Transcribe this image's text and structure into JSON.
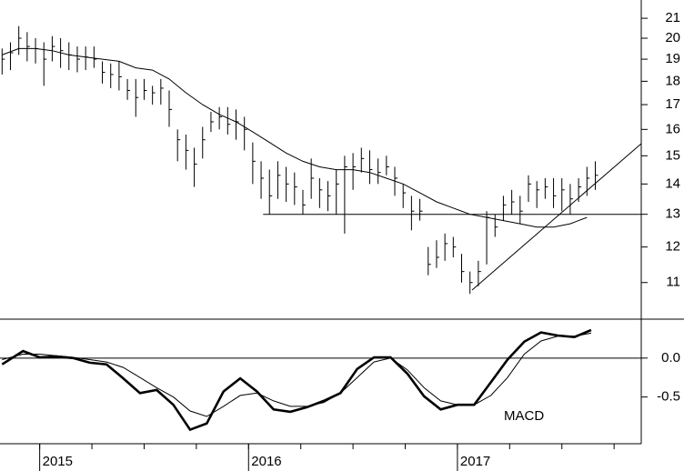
{
  "chart_data": [
    {
      "type": "ohlc",
      "log_y": true,
      "color": "#000000",
      "xlim": [
        2014.81,
        2017.88
      ],
      "ylim": [
        10.08,
        21.96
      ],
      "yticks": [
        11,
        12,
        13,
        14,
        15,
        16,
        17,
        18,
        19,
        20,
        21
      ],
      "x": [
        2014.82,
        2014.86,
        2014.9,
        2014.94,
        2014.98,
        2015.02,
        2015.06,
        2015.1,
        2015.14,
        2015.18,
        2015.22,
        2015.26,
        2015.3,
        2015.34,
        2015.38,
        2015.42,
        2015.46,
        2015.5,
        2015.54,
        2015.58,
        2015.62,
        2015.66,
        2015.7,
        2015.74,
        2015.78,
        2015.82,
        2015.86,
        2015.9,
        2015.94,
        2015.98,
        2016.02,
        2016.06,
        2016.1,
        2016.14,
        2016.18,
        2016.22,
        2016.26,
        2016.3,
        2016.34,
        2016.38,
        2016.42,
        2016.46,
        2016.5,
        2016.54,
        2016.58,
        2016.62,
        2016.66,
        2016.7,
        2016.74,
        2016.78,
        2016.82,
        2016.86,
        2016.9,
        2016.94,
        2016.98,
        2017.02,
        2017.06,
        2017.1,
        2017.14,
        2017.18,
        2017.22,
        2017.26,
        2017.3,
        2017.34,
        2017.38,
        2017.42,
        2017.46,
        2017.5,
        2017.54,
        2017.58,
        2017.62,
        2017.66
      ],
      "high": [
        19.5,
        19.8,
        20.6,
        20.3,
        20.0,
        19.8,
        20.1,
        20.0,
        19.8,
        19.6,
        19.6,
        19.6,
        18.9,
        18.8,
        18.9,
        18.1,
        18.1,
        18.1,
        17.8,
        18.1,
        17.6,
        16.0,
        15.8,
        15.3,
        16.1,
        16.7,
        16.9,
        16.9,
        16.8,
        16.5,
        15.5,
        14.8,
        14.5,
        14.8,
        14.6,
        14.4,
        13.8,
        14.9,
        14.2,
        14.1,
        14.5,
        15.0,
        15.1,
        15.3,
        15.2,
        14.9,
        15.0,
        14.6,
        14.0,
        13.6,
        13.5,
        12.0,
        12.2,
        12.4,
        12.3,
        11.8,
        11.3,
        11.6,
        13.1,
        13.0,
        13.6,
        13.8,
        13.6,
        14.3,
        14.1,
        14.2,
        14.2,
        14.2,
        14.0,
        14.2,
        14.6,
        14.8
      ],
      "low": [
        18.3,
        18.5,
        19.2,
        18.9,
        18.8,
        17.8,
        18.9,
        18.6,
        18.5,
        18.4,
        18.5,
        18.6,
        17.9,
        17.7,
        17.6,
        17.2,
        16.5,
        17.2,
        17.0,
        17.0,
        16.1,
        14.8,
        14.5,
        13.9,
        14.9,
        15.9,
        16.0,
        15.8,
        15.6,
        15.2,
        14.0,
        13.5,
        13.0,
        13.5,
        13.4,
        13.3,
        13.0,
        13.5,
        13.2,
        13.1,
        13.0,
        12.4,
        13.8,
        14.4,
        14.0,
        14.0,
        14.3,
        13.6,
        13.2,
        12.5,
        12.8,
        11.2,
        11.4,
        11.6,
        11.7,
        11.0,
        10.7,
        10.9,
        11.5,
        12.3,
        12.8,
        13.0,
        12.7,
        13.4,
        13.2,
        13.5,
        13.2,
        13.1,
        13.0,
        13.4,
        13.6,
        13.8
      ],
      "close": [
        19.0,
        19.3,
        20.0,
        19.6,
        19.5,
        19.0,
        19.6,
        19.4,
        19.2,
        19.0,
        19.1,
        19.0,
        18.4,
        18.3,
        18.2,
        17.6,
        17.3,
        17.6,
        17.5,
        17.7,
        16.8,
        15.6,
        15.2,
        14.7,
        15.6,
        16.3,
        16.5,
        16.2,
        16.3,
        16.0,
        14.8,
        14.2,
        13.6,
        14.3,
        14.0,
        13.9,
        13.3,
        14.2,
        13.8,
        13.6,
        14.0,
        14.6,
        14.6,
        14.9,
        14.5,
        14.4,
        14.6,
        14.2,
        13.7,
        13.1,
        13.1,
        11.5,
        11.7,
        12.1,
        12.0,
        11.3,
        11.0,
        11.3,
        12.9,
        12.6,
        13.3,
        13.4,
        13.1,
        14.0,
        13.8,
        13.9,
        13.6,
        13.8,
        13.5,
        13.9,
        14.2,
        14.3
      ],
      "moving_average": {
        "x": [
          2014.82,
          2014.9,
          2014.98,
          2015.06,
          2015.14,
          2015.22,
          2015.3,
          2015.38,
          2015.46,
          2015.54,
          2015.62,
          2015.7,
          2015.78,
          2015.86,
          2015.94,
          2016.02,
          2016.1,
          2016.18,
          2016.26,
          2016.34,
          2016.42,
          2016.5,
          2016.58,
          2016.66,
          2016.74,
          2016.82,
          2016.9,
          2016.98,
          2017.06,
          2017.14,
          2017.22,
          2017.3,
          2017.38,
          2017.46,
          2017.54,
          2017.62
        ],
        "values": [
          19.2,
          19.5,
          19.5,
          19.4,
          19.2,
          19.1,
          19.0,
          18.9,
          18.6,
          18.5,
          18.1,
          17.5,
          17.0,
          16.6,
          16.3,
          15.9,
          15.5,
          15.1,
          14.8,
          14.6,
          14.5,
          14.5,
          14.4,
          14.2,
          14.0,
          13.7,
          13.4,
          13.2,
          13.0,
          12.9,
          12.8,
          12.7,
          12.6,
          12.6,
          12.7,
          12.9
        ]
      },
      "lines": [
        {
          "x": [
            2016.07,
            2017.88
          ],
          "values": [
            13,
            13
          ]
        },
        {
          "x": [
            2017.07,
            2017.88
          ],
          "values": [
            10.8,
            15.45
          ]
        }
      ]
    },
    {
      "type": "line",
      "annotation": "MACD",
      "xlim": [
        2014.81,
        2017.88
      ],
      "ylim": [
        -1.1,
        0.5
      ],
      "yticks": [
        {
          "value": 0,
          "label": "0.0"
        },
        -0.5
      ],
      "xticks": [
        2015,
        2016,
        2017
      ],
      "x": [
        2014.82,
        2014.92,
        2015.0,
        2015.08,
        2015.16,
        2015.24,
        2015.32,
        2015.4,
        2015.48,
        2015.56,
        2015.64,
        2015.72,
        2015.8,
        2015.88,
        2015.96,
        2016.04,
        2016.12,
        2016.2,
        2016.28,
        2016.36,
        2016.44,
        2016.52,
        2016.6,
        2016.68,
        2016.76,
        2016.84,
        2016.92,
        2017.0,
        2017.08,
        2017.16,
        2017.24,
        2017.32,
        2017.4,
        2017.48,
        2017.56,
        2017.64
      ],
      "series": [
        {
          "color": "#000000",
          "width": 2.6,
          "values": [
            -0.08,
            0.09,
            0.01,
            0.02,
            0,
            -0.06,
            -0.08,
            -0.26,
            -0.45,
            -0.41,
            -0.6,
            -0.92,
            -0.84,
            -0.43,
            -0.26,
            -0.43,
            -0.66,
            -0.69,
            -0.63,
            -0.55,
            -0.45,
            -0.14,
            0.01,
            0.01,
            -0.2,
            -0.49,
            -0.66,
            -0.6,
            -0.6,
            -0.31,
            -0.02,
            0.21,
            0.33,
            0.29,
            0.27,
            0.36
          ]
        },
        {
          "color": "#000000",
          "width": 1,
          "values": [
            -0.02,
            0.05,
            0.05,
            0.03,
            0.01,
            -0.02,
            -0.05,
            -0.12,
            -0.25,
            -0.38,
            -0.5,
            -0.68,
            -0.75,
            -0.62,
            -0.48,
            -0.45,
            -0.55,
            -0.62,
            -0.62,
            -0.57,
            -0.45,
            -0.25,
            -0.05,
            0.0,
            -0.15,
            -0.38,
            -0.55,
            -0.6,
            -0.6,
            -0.48,
            -0.25,
            0.05,
            0.22,
            0.28,
            0.28,
            0.32
          ]
        }
      ]
    }
  ]
}
